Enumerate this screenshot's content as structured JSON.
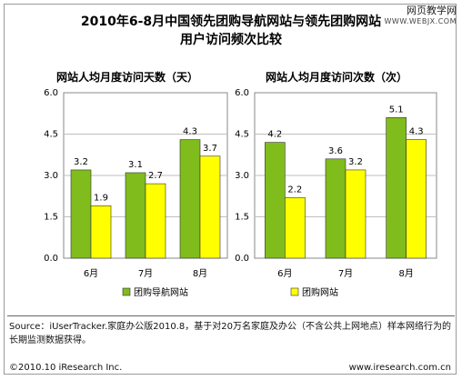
{
  "title_lines": [
    "2010年6-8月中国领先团购导航网站与领先团购网站",
    "用户访问频次比较"
  ],
  "watermark": {
    "line1": "网页教学网",
    "line2": "WWW.WEBJX.COM"
  },
  "colors": {
    "series1": "#80bc1c",
    "series2": "#ffff00",
    "bar_stroke": "#333333",
    "grid": "#bfbfbf"
  },
  "chart_data": [
    {
      "type": "bar",
      "title": "网站人均月度访问天数（天）",
      "categories": [
        "6月",
        "7月",
        "8月"
      ],
      "yticks": [
        "6.0",
        "4.5",
        "3.0",
        "1.5",
        "0.0"
      ],
      "ylim": [
        0,
        6
      ],
      "series": [
        {
          "name": "团购导航网站",
          "values": [
            3.2,
            3.1,
            4.3
          ],
          "labels": [
            "3.2",
            "3.1",
            "4.3"
          ]
        },
        {
          "name": "团购网站",
          "values": [
            1.9,
            2.7,
            3.7
          ],
          "labels": [
            "1.9",
            "2.7",
            "3.7"
          ]
        }
      ],
      "legend": "none"
    },
    {
      "type": "bar",
      "title": "网站人均月度访问次数（次）",
      "categories": [
        "6月",
        "7月",
        "8月"
      ],
      "yticks": [
        "6.0",
        "4.5",
        "3.0",
        "1.5",
        "0.0"
      ],
      "ylim": [
        0,
        6
      ],
      "series": [
        {
          "name": "团购导航网站",
          "values": [
            4.2,
            3.6,
            5.1
          ],
          "labels": [
            "4.2",
            "3.6",
            "5.1"
          ]
        },
        {
          "name": "团购网站",
          "values": [
            2.2,
            3.2,
            4.3
          ],
          "labels": [
            "2.2",
            "3.2",
            "4.3"
          ]
        }
      ],
      "legend": "bottom"
    }
  ],
  "legend": [
    "团购导航网站",
    "团购网站"
  ],
  "source_text": "Source：iUserTracker.家庭办公版2010.8，基于对20万名家庭及办公（不含公共上网地点）样本网络行为的长期监测数据获得。",
  "footer_left": "©2010.10 iResearch Inc.",
  "footer_right": "www.iresearch.com.cn"
}
